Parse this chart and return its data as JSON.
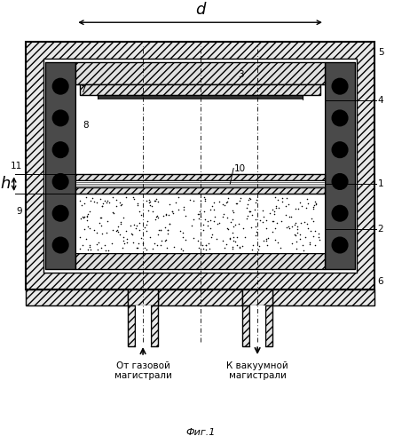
{
  "title": "Фиг.1",
  "label_d": "d",
  "label_h": "h",
  "text_bottom_left": "От газовой\nмагистрали",
  "text_bottom_right": "К вакуумной\nмагистрали",
  "bg_color": "#ffffff"
}
